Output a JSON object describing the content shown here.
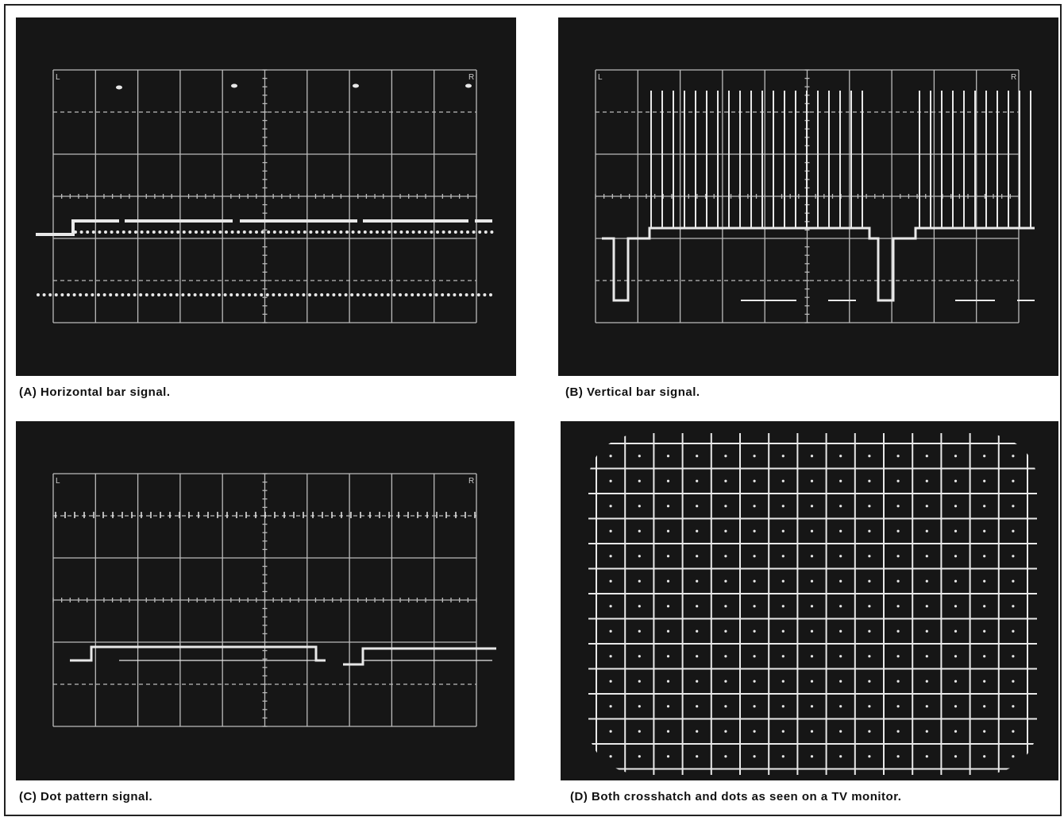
{
  "panels": [
    {
      "caption": "(A)  Horizontal bar signal.",
      "screen_labels": [
        "L",
        "R"
      ]
    },
    {
      "caption": "(B)  Vertical bar signal.",
      "screen_labels": [
        "L",
        "R"
      ]
    },
    {
      "caption": "(C)  Dot pattern signal.",
      "screen_labels": [
        "L",
        "R"
      ]
    },
    {
      "caption": "(D)  Both crosshatch and dots as seen on a TV monitor."
    }
  ]
}
